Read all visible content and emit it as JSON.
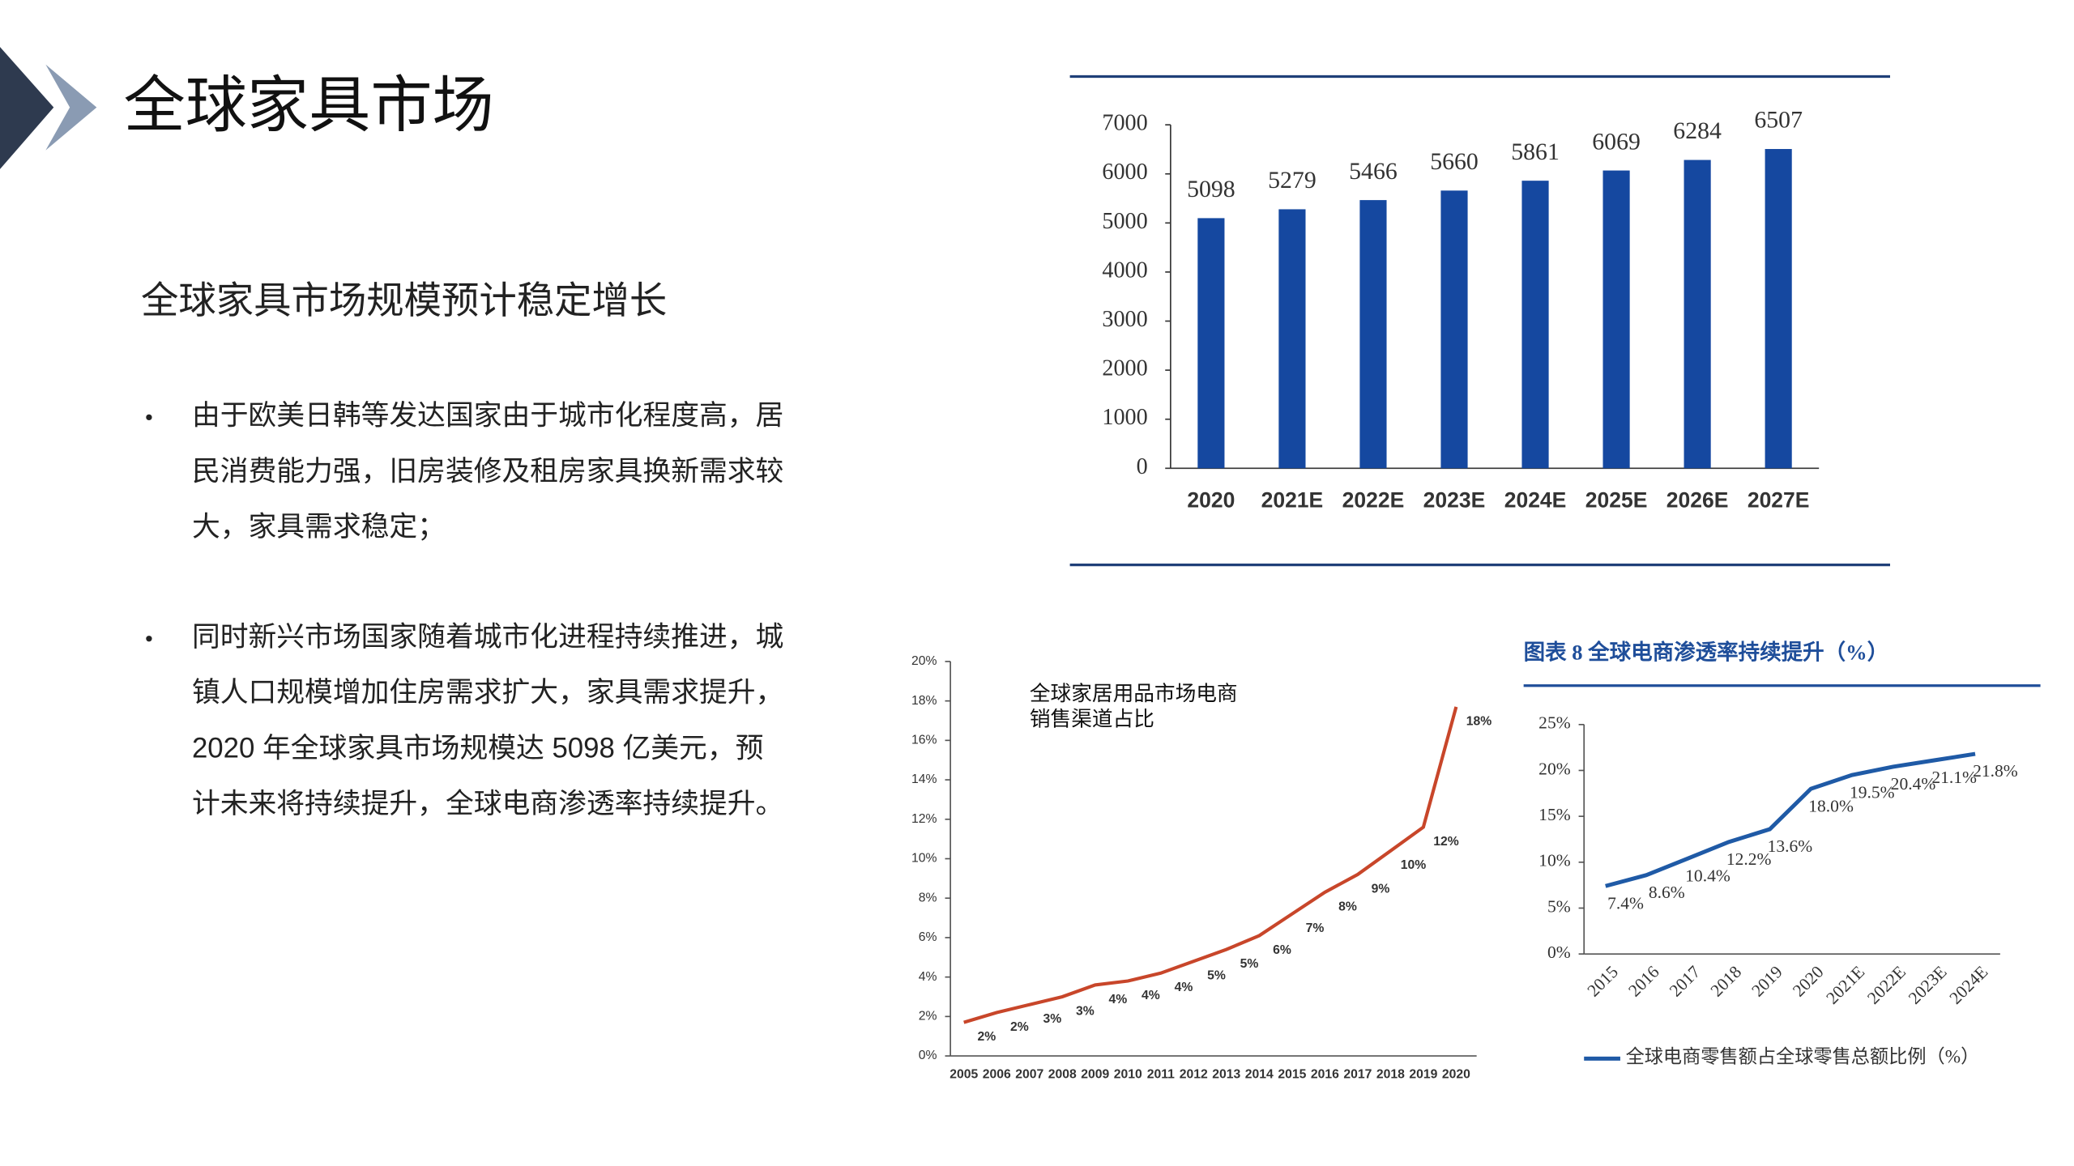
{
  "header": {
    "title": "全球家具市场"
  },
  "subtitle": "全球家具市场规模预计稳定增长",
  "bullets": [
    [
      "由于欧美日韩等发达国家由于城市化程度高，居",
      "民消费能力强，旧房装修及租房家具换新需求较",
      "大，家具需求稳定；"
    ],
    [
      "同时新兴市场国家随着城市化进程持续推进，城",
      "镇人口规模增加住房需求扩大，家具需求提升，",
      "2020 年全球家具市场规模达 5098 亿美元，预",
      "计未来将持续提升，全球电商渗透率持续提升。"
    ]
  ],
  "chart_data": [
    {
      "type": "bar",
      "categories": [
        "2020",
        "2021E",
        "2022E",
        "2023E",
        "2024E",
        "2025E",
        "2026E",
        "2027E"
      ],
      "values": [
        5098,
        5279,
        5466,
        5660,
        5861,
        6069,
        6284,
        6507
      ],
      "color": "#1548a0",
      "ylim": [
        0,
        7000
      ],
      "yticks": [
        0,
        1000,
        2000,
        3000,
        4000,
        5000,
        6000,
        7000
      ]
    },
    {
      "type": "line",
      "title": [
        "全球家居用品市场电商",
        "销售渠道占比"
      ],
      "categories": [
        "2005",
        "2006",
        "2007",
        "2008",
        "2009",
        "2010",
        "2011",
        "2012",
        "2013",
        "2014",
        "2015",
        "2016",
        "2017",
        "2018",
        "2019",
        "2020"
      ],
      "values": [
        1.7,
        2.2,
        2.6,
        3.0,
        3.6,
        3.8,
        4.2,
        4.8,
        5.4,
        6.1,
        7.2,
        8.3,
        9.2,
        10.4,
        11.6,
        17.7
      ],
      "value_labels": [
        "2%",
        "2%",
        "3%",
        "3%",
        "4%",
        "4%",
        "4%",
        "5%",
        "5%",
        "6%",
        "7%",
        "8%",
        "9%",
        "10%",
        "12%",
        "18%"
      ],
      "color": "#c8462a",
      "ylim": [
        0,
        20
      ],
      "yticks": [
        {
          "value": 0,
          "label": "0%"
        },
        {
          "value": 2,
          "label": "2%"
        },
        {
          "value": 4,
          "label": "4%"
        },
        {
          "value": 6,
          "label": "6%"
        },
        {
          "value": 8,
          "label": "8%"
        },
        {
          "value": 10,
          "label": "10%"
        },
        {
          "value": 12,
          "label": "12%"
        },
        {
          "value": 14,
          "label": "14%"
        },
        {
          "value": 16,
          "label": "16%"
        },
        {
          "value": 18,
          "label": "18%"
        },
        {
          "value": 20,
          "label": "20%"
        }
      ]
    },
    {
      "type": "line",
      "title": "图表 8  全球电商渗透率持续提升（%）",
      "categories": [
        "2015",
        "2016",
        "2017",
        "2018",
        "2019",
        "2020",
        "2021E",
        "2022E",
        "2023E",
        "2024E"
      ],
      "series": [
        {
          "name": "全球电商零售额占全球零售总额比例（%）",
          "color": "#1f5aa6",
          "values": [
            7.4,
            8.6,
            10.4,
            12.2,
            13.6,
            18.0,
            19.5,
            20.4,
            21.1,
            21.8
          ],
          "value_labels": [
            "7.4%",
            "8.6%",
            "10.4%",
            "12.2%",
            "13.6%",
            "18.0%",
            "19.5%",
            "20.4%",
            "21.1%",
            "21.8%"
          ]
        }
      ],
      "ylim": [
        0,
        25
      ],
      "yticks": [
        {
          "value": 0,
          "label": "0%"
        },
        {
          "value": 5,
          "label": "5%"
        },
        {
          "value": 10,
          "label": "10%"
        },
        {
          "value": 15,
          "label": "15%"
        },
        {
          "value": 20,
          "label": "20%"
        },
        {
          "value": 25,
          "label": "25%"
        }
      ]
    }
  ]
}
